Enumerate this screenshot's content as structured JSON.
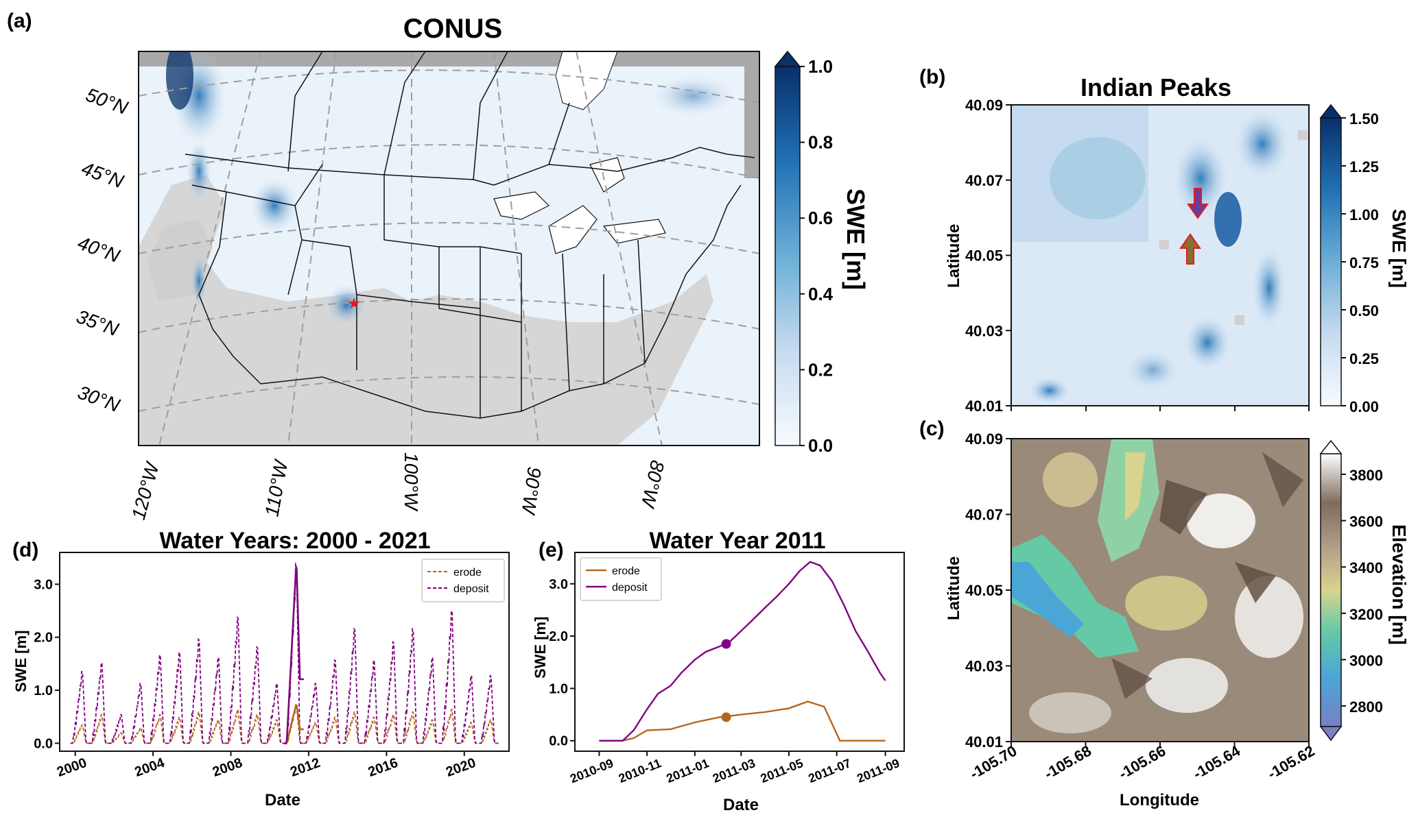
{
  "panels": {
    "a": {
      "letter": "(a)",
      "title": "CONUS",
      "lat_labels": [
        "50°N",
        "45°N",
        "40°N",
        "35°N",
        "30°N"
      ],
      "lon_labels": [
        "120°W",
        "110°W",
        "100°W",
        "90°W",
        "80°W"
      ],
      "colorbar": {
        "label": "SWE [m]",
        "ticks": [
          "0.0",
          "0.2",
          "0.4",
          "0.6",
          "0.8",
          "1.0"
        ],
        "colors": [
          "#f7fbff",
          "#c6dbef",
          "#6baed6",
          "#2171b5",
          "#08306b"
        ]
      }
    },
    "b": {
      "letter": "(b)",
      "title": "Indian Peaks",
      "ylabel": "Latitude",
      "yticks": [
        "40.09",
        "40.07",
        "40.05",
        "40.03",
        "40.01"
      ],
      "colorbar": {
        "label": "SWE [m]",
        "ticks": [
          "0.00",
          "0.25",
          "0.50",
          "0.75",
          "1.00",
          "1.25",
          "1.50"
        ]
      }
    },
    "c": {
      "letter": "(c)",
      "ylabel": "Latitude",
      "xlabel": "Longitude",
      "yticks": [
        "40.09",
        "40.07",
        "40.05",
        "40.03",
        "40.01"
      ],
      "xticks": [
        "-105.70",
        "-105.68",
        "-105.66",
        "-105.64",
        "-105.62"
      ],
      "colorbar": {
        "label": "Elevation [m]",
        "ticks": [
          "2800",
          "3000",
          "3200",
          "3400",
          "3600",
          "3800"
        ],
        "colors": [
          "#7b7fc4",
          "#4aa6d6",
          "#66c9a6",
          "#d8d38e",
          "#b5a08a",
          "#7e6c5e",
          "#ffffff"
        ]
      }
    },
    "d": {
      "letter": "(d)"
    },
    "e": {
      "letter": "(e)"
    }
  },
  "chart_data": [
    {
      "type": "line",
      "title": "Water Years: 2000 - 2021",
      "xlabel": "Date",
      "ylabel": "SWE [m]",
      "xlim": [
        1999.2,
        2022.3
      ],
      "ylim": [
        -0.15,
        3.6
      ],
      "xticks": [
        "2000",
        "2004",
        "2008",
        "2012",
        "2016",
        "2020"
      ],
      "yticks": [
        "0.0",
        "1.0",
        "2.0",
        "3.0"
      ],
      "legend": {
        "position": "top-right",
        "entries": [
          "erode",
          "deposit"
        ]
      },
      "seasonal_peaks": {
        "years": [
          2000,
          2001,
          2002,
          2003,
          2004,
          2005,
          2006,
          2007,
          2008,
          2009,
          2010,
          2011,
          2012,
          2013,
          2014,
          2015,
          2016,
          2017,
          2018,
          2019,
          2020,
          2021
        ],
        "deposit_peak": [
          1.38,
          1.55,
          0.55,
          1.15,
          1.7,
          1.75,
          2.0,
          1.65,
          2.42,
          1.85,
          1.15,
          3.45,
          1.15,
          1.6,
          2.2,
          1.6,
          1.95,
          2.2,
          1.65,
          2.55,
          1.3,
          1.3
        ],
        "erode_peak": [
          0.35,
          0.55,
          0.2,
          0.3,
          0.55,
          0.5,
          0.6,
          0.45,
          0.65,
          0.55,
          0.45,
          0.75,
          0.4,
          0.5,
          0.6,
          0.5,
          0.55,
          0.6,
          0.45,
          0.65,
          0.4,
          0.45
        ]
      },
      "series": [
        {
          "name": "erode",
          "color": "#b5651d",
          "style": "dashed"
        },
        {
          "name": "deposit",
          "color": "#800080",
          "style": "dashed"
        }
      ],
      "highlight_water_year": 2011
    },
    {
      "type": "line",
      "title": "Water Year 2011",
      "xlabel": "Date",
      "ylabel": "SWE [m]",
      "xlim": [
        "2010-08-01",
        "2011-09-25"
      ],
      "ylim": [
        -0.2,
        3.6
      ],
      "xticks": [
        "2010-09",
        "2010-11",
        "2011-01",
        "2011-03",
        "2011-05",
        "2011-07",
        "2011-09"
      ],
      "yticks": [
        "0.0",
        "1.0",
        "2.0",
        "3.0"
      ],
      "legend": {
        "position": "top-left",
        "entries": [
          "erode",
          "deposit"
        ]
      },
      "series": [
        {
          "name": "erode",
          "color": "#b5651d",
          "style": "solid",
          "x": [
            "2010-09-01",
            "2010-10-01",
            "2010-10-15",
            "2010-11-01",
            "2010-12-01",
            "2011-01-01",
            "2011-02-01",
            "2011-03-01",
            "2011-04-01",
            "2011-05-01",
            "2011-05-25",
            "2011-06-15",
            "2011-07-05",
            "2011-08-01",
            "2011-09-01"
          ],
          "y": [
            0.0,
            0.0,
            0.05,
            0.2,
            0.22,
            0.35,
            0.45,
            0.5,
            0.55,
            0.62,
            0.75,
            0.65,
            0.0,
            0.0,
            0.0
          ]
        },
        {
          "name": "deposit",
          "color": "#800080",
          "style": "solid",
          "x": [
            "2010-09-01",
            "2010-10-01",
            "2010-10-15",
            "2010-11-01",
            "2010-11-15",
            "2010-12-01",
            "2010-12-15",
            "2011-01-01",
            "2011-01-15",
            "2011-02-01",
            "2011-02-15",
            "2011-03-01",
            "2011-03-15",
            "2011-04-01",
            "2011-04-15",
            "2011-05-01",
            "2011-05-15",
            "2011-05-28",
            "2011-06-10",
            "2011-06-25",
            "2011-07-10",
            "2011-07-25",
            "2011-08-10",
            "2011-08-25",
            "2011-09-01"
          ],
          "y": [
            0.0,
            0.0,
            0.2,
            0.6,
            0.9,
            1.05,
            1.3,
            1.55,
            1.7,
            1.8,
            1.9,
            2.1,
            2.3,
            2.55,
            2.75,
            3.0,
            3.25,
            3.42,
            3.35,
            3.05,
            2.6,
            2.1,
            1.7,
            1.3,
            1.15
          ]
        }
      ],
      "markers": [
        {
          "series": "deposit",
          "x": "2011-02-10",
          "y": 1.85,
          "color": "#800080"
        },
        {
          "series": "erode",
          "x": "2011-02-10",
          "y": 0.45,
          "color": "#b5651d"
        }
      ]
    }
  ]
}
